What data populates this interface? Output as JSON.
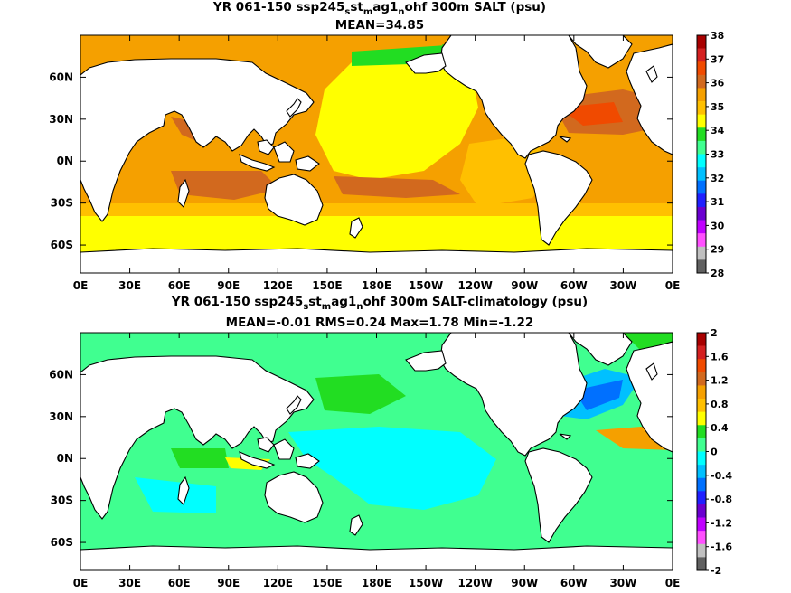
{
  "chart_data": [
    {
      "type": "heatmap",
      "title_parts": [
        "YR 061-150 ssp245",
        "s",
        "st",
        "m",
        "ag1",
        "n",
        "ohf 300m SALT (psu)"
      ],
      "subtitle": "MEAN=34.85",
      "x_ticks": [
        "0E",
        "30E",
        "60E",
        "90E",
        "120E",
        "150E",
        "180E",
        "150W",
        "120W",
        "90W",
        "60W",
        "30W",
        "0E"
      ],
      "y_ticks": [
        "60N",
        "30N",
        "0N",
        "30S",
        "60S"
      ],
      "xlim": [
        0,
        360
      ],
      "ylim": [
        -80,
        90
      ],
      "colorbar": {
        "labels": [
          "38",
          "37",
          "36",
          "35",
          "34",
          "33",
          "32",
          "31",
          "30",
          "29",
          "28"
        ],
        "colors": [
          "#a80000",
          "#d42020",
          "#f04a00",
          "#d2691e",
          "#f5a000",
          "#ffc000",
          "#ffff00",
          "#22dd22",
          "#40ff90",
          "#00ffff",
          "#00c0ff",
          "#0070ff",
          "#2020ff",
          "#6a00d0",
          "#c000ff",
          "#ff50ff",
          "#c0c0c0",
          "#606060"
        ]
      }
    },
    {
      "type": "heatmap",
      "title_parts": [
        "YR 061-150 ssp245",
        "s",
        "st",
        "m",
        "ag1",
        "n",
        "ohf 300m SALT-climatology (psu)"
      ],
      "subtitle": "MEAN=-0.01   RMS=0.24   Max=1.78   Min=-1.22",
      "x_ticks": [
        "0E",
        "30E",
        "60E",
        "90E",
        "120E",
        "150E",
        "180E",
        "150W",
        "120W",
        "90W",
        "60W",
        "30W",
        "0E"
      ],
      "y_ticks": [
        "60N",
        "30N",
        "0N",
        "30S",
        "60S"
      ],
      "xlim": [
        0,
        360
      ],
      "ylim": [
        -80,
        90
      ],
      "colorbar": {
        "labels": [
          "2",
          "1.6",
          "1.2",
          "0.8",
          "0.4",
          "0",
          "-0.4",
          "-0.8",
          "-1.2",
          "-1.6",
          "-2"
        ],
        "colors": [
          "#a80000",
          "#d42020",
          "#f04a00",
          "#d2691e",
          "#f5a000",
          "#ffc000",
          "#ffff00",
          "#22dd22",
          "#40ff90",
          "#00ffff",
          "#00c0ff",
          "#0070ff",
          "#2020ff",
          "#6a00d0",
          "#c000ff",
          "#ff50ff",
          "#c0c0c0",
          "#606060"
        ]
      }
    }
  ]
}
